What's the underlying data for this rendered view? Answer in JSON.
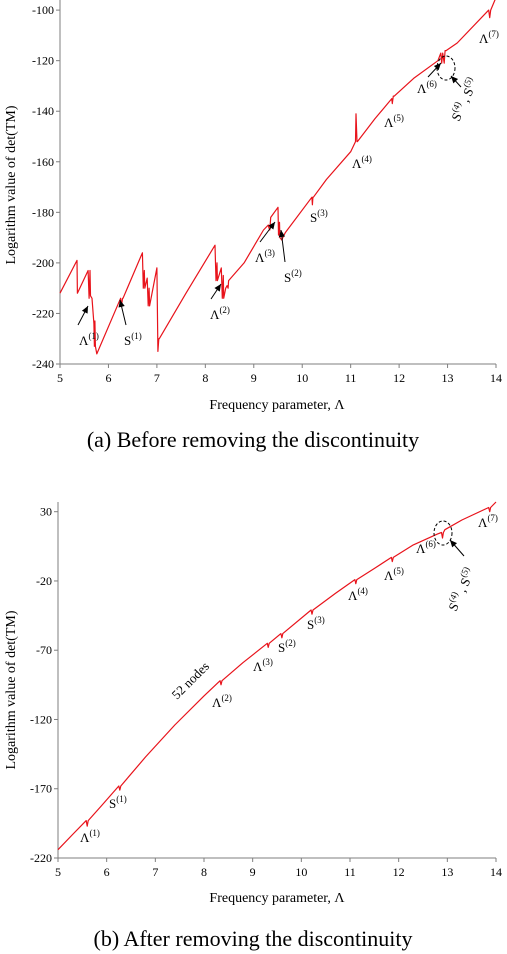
{
  "chart_data": [
    {
      "type": "line",
      "caption": "(a) Before removing the discontinuity",
      "xlabel": "Frequency parameter, Λ",
      "ylabel": "Logarithm value of  det(TM)",
      "xlim": [
        5,
        14
      ],
      "ylim": [
        -240,
        -96
      ],
      "xticks": [
        "5",
        "6",
        "7",
        "8",
        "9",
        "10",
        "11",
        "12",
        "13",
        "14"
      ],
      "yticks": [
        "-100",
        "-120",
        "-140",
        "-160",
        "-180",
        "-200",
        "-220",
        "-240"
      ],
      "grid": false,
      "series_color": "#e8131b",
      "series": [
        {
          "x": [
            5.0,
            5.35,
            5.36,
            5.58,
            5.6,
            5.62,
            5.63,
            5.66,
            5.7,
            5.71,
            5.72,
            5.73,
            5.76,
            6.25,
            6.27,
            6.29,
            6.3,
            6.7,
            6.72,
            6.74,
            6.75,
            6.8,
            6.82,
            6.84,
            6.85,
            7.0,
            7.02,
            7.04,
            7.05,
            7.6,
            8.2,
            8.22,
            8.24,
            8.25,
            8.33,
            8.35,
            8.37,
            8.38,
            8.42,
            8.45,
            8.47,
            8.48,
            8.8,
            9.2,
            9.3,
            9.31,
            9.33,
            9.35,
            9.5,
            9.51,
            9.53,
            9.54,
            9.58,
            9.6,
            9.65,
            10.2,
            10.21,
            10.22,
            10.23,
            10.5,
            11.0,
            11.1,
            11.11,
            11.13,
            11.14,
            11.5,
            11.85,
            11.86,
            11.88,
            11.9,
            12.3,
            12.8,
            12.86,
            12.88,
            12.9,
            12.93,
            12.95,
            12.97,
            13.2,
            13.85,
            13.87,
            13.89,
            14.0
          ],
          "y": [
            -212,
            -199,
            -212,
            -203,
            -214,
            -203,
            -213,
            -214,
            -224,
            -233,
            -223,
            -233,
            -236,
            -214,
            -217,
            -214,
            -214,
            -196,
            -210,
            -203,
            -210,
            -206,
            -217,
            -210,
            -217,
            -202,
            -235,
            -230,
            -230,
            -212,
            -193,
            -207,
            -200,
            -207,
            -202,
            -214,
            -205,
            -214,
            -210,
            -209,
            -210,
            -207,
            -200,
            -187,
            -185,
            -186,
            -187,
            -182,
            -178,
            -189,
            -184,
            -190,
            -191,
            -190,
            -188,
            -174,
            -177,
            -174,
            -174,
            -167,
            -156,
            -152,
            -141,
            -152,
            -152,
            -143,
            -135,
            -137,
            -134,
            -134,
            -127,
            -120,
            -117,
            -121,
            -117,
            -121,
            -116,
            -116,
            -113,
            -100,
            -103,
            -100,
            -95
          ]
        }
      ],
      "annotations": [
        {
          "base": "Λ",
          "sup": "(1)"
        },
        {
          "base": "S",
          "sup": "(1)"
        },
        {
          "base": "Λ",
          "sup": "(2)"
        },
        {
          "base": "Λ",
          "sup": "(3)"
        },
        {
          "base": "S",
          "sup": "(2)"
        },
        {
          "base": "S",
          "sup": "(3)"
        },
        {
          "base": "Λ",
          "sup": "(4)"
        },
        {
          "base": "Λ",
          "sup": "(5)"
        },
        {
          "base": "Λ",
          "sup": "(6)"
        },
        {
          "base": "Λ",
          "sup": "(7)"
        },
        {
          "base": "S",
          "sup": "(4)",
          "base2": "S",
          "sup2": "(5)",
          "sep": " , "
        }
      ]
    },
    {
      "type": "line",
      "caption": "(b) After removing the discontinuity",
      "xlabel": "Frequency parameter, Λ",
      "ylabel": "Logarithm value of  det(TM)",
      "xlim": [
        5,
        14
      ],
      "ylim": [
        -220,
        37
      ],
      "xticks": [
        "5",
        "6",
        "7",
        "8",
        "9",
        "10",
        "11",
        "12",
        "13",
        "14"
      ],
      "yticks": [
        "30",
        "-20",
        "-70",
        "-120",
        "-170",
        "-220"
      ],
      "grid": false,
      "series_color": "#e8131b",
      "series": [
        {
          "x": [
            5.0,
            5.3,
            5.58,
            5.6,
            5.62,
            5.9,
            6.25,
            6.27,
            6.29,
            6.8,
            7.4,
            8.0,
            8.33,
            8.35,
            8.37,
            8.8,
            9.3,
            9.32,
            9.34,
            9.58,
            9.6,
            9.62,
            10.2,
            10.22,
            10.24,
            10.7,
            11.1,
            11.12,
            11.14,
            11.5,
            11.85,
            11.87,
            11.89,
            12.3,
            12.8,
            12.88,
            12.9,
            12.92,
            12.95,
            13.3,
            13.85,
            13.87,
            13.89,
            14.0
          ],
          "y": [
            -214,
            -203,
            -193,
            -197,
            -193,
            -182,
            -168,
            -171,
            -168,
            -147,
            -124,
            -103,
            -92,
            -95,
            -92,
            -79,
            -65,
            -68,
            -65,
            -58,
            -61,
            -58,
            -41,
            -44,
            -41,
            -29,
            -19,
            -22,
            -19,
            -11,
            -3,
            -6,
            -3,
            6,
            14,
            15,
            11,
            15,
            17,
            24,
            33,
            30,
            33,
            37
          ]
        }
      ],
      "annotations": [
        {
          "base": "Λ",
          "sup": "(1)"
        },
        {
          "base": "S",
          "sup": "(1)"
        },
        {
          "base": "Λ",
          "sup": "(2)"
        },
        {
          "base": "Λ",
          "sup": "(3)"
        },
        {
          "base": "S",
          "sup": "(2)"
        },
        {
          "base": "S",
          "sup": "(3)"
        },
        {
          "base": "Λ",
          "sup": "(4)"
        },
        {
          "base": "Λ",
          "sup": "(5)"
        },
        {
          "base": "Λ",
          "sup": "(6)"
        },
        {
          "base": "Λ",
          "sup": "(7)"
        },
        {
          "base": "S",
          "sup": "(4)",
          "base2": "S",
          "sup2": "(5)",
          "sep": " , "
        }
      ],
      "rotated_note": "52 nodes"
    }
  ]
}
